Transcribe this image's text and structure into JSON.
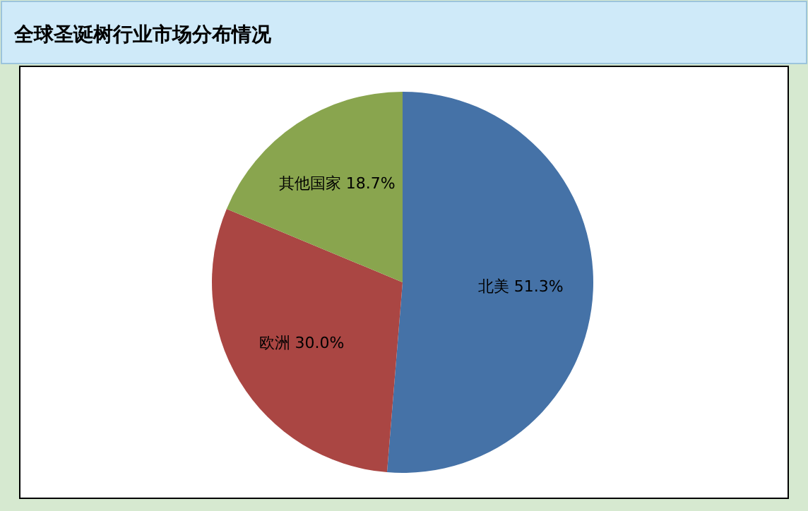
{
  "chart_data": {
    "type": "pie",
    "title": "全球圣诞树行业市场分布情况",
    "categories": [
      "北美",
      "欧洲",
      "其他国家"
    ],
    "values": [
      51.3,
      30.0,
      18.7
    ],
    "value_labels": [
      "51.3%",
      "30.0%",
      "18.7%"
    ],
    "colors": [
      "#4572a7",
      "#aa4643",
      "#89a54e"
    ]
  }
}
